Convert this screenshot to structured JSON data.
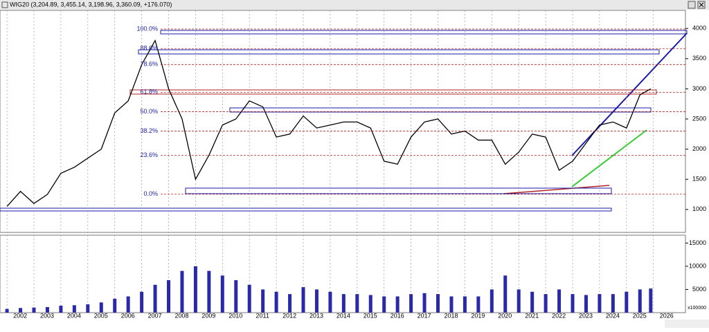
{
  "window_title": "WIG20 (3,204.89, 3,455.14, 3,198.96, 3,360.09, +176.070)",
  "chart_data": [
    {
      "type": "line",
      "color": "#000000",
      "x": [
        2002.0,
        2002.5,
        2003.0,
        2003.5,
        2004.0,
        2004.5,
        2005.0,
        2005.5,
        2006.0,
        2006.5,
        2007.0,
        2007.5,
        2008.0,
        2008.5,
        2009.0,
        2009.5,
        2010.0,
        2010.5,
        2011.0,
        2011.5,
        2012.0,
        2012.5,
        2013.0,
        2013.5,
        2014.0,
        2014.5,
        2015.0,
        2015.5,
        2016.0,
        2016.5,
        2017.0,
        2017.5,
        2018.0,
        2018.5,
        2019.0,
        2019.5,
        2020.0,
        2020.5,
        2021.0,
        2021.5,
        2022.0,
        2022.5,
        2023.0,
        2023.5,
        2024.0,
        2024.5,
        2025.0,
        2025.5,
        2025.9
      ],
      "values": [
        1050,
        1300,
        1100,
        1250,
        1600,
        1700,
        1850,
        2000,
        2600,
        2800,
        3400,
        3800,
        3000,
        2500,
        1500,
        1900,
        2400,
        2500,
        2800,
        2700,
        2200,
        2250,
        2550,
        2350,
        2400,
        2450,
        2450,
        2350,
        1800,
        1750,
        2200,
        2450,
        2500,
        2250,
        2300,
        2150,
        2150,
        1750,
        1950,
        2250,
        2200,
        1650,
        1800,
        2100,
        2400,
        2450,
        2350,
        2900,
        3000
      ],
      "xlim": [
        2001.74,
        2027.19
      ],
      "ylim": [
        620,
        4300
      ],
      "yticks": [
        1000,
        1500,
        2000,
        2500,
        3000,
        3500,
        4000
      ],
      "fib_levels": [
        {
          "label": "100.0%",
          "value": 3990
        },
        {
          "label": "88.6%",
          "value": 3667
        },
        {
          "label": "78.6%",
          "value": 3402
        },
        {
          "label": "61.8%",
          "value": 2943
        },
        {
          "label": "50.0%",
          "value": 2621
        },
        {
          "label": "38.2%",
          "value": 2299
        },
        {
          "label": "23.6%",
          "value": 1897
        },
        {
          "label": "0.0%",
          "value": 1253
        }
      ],
      "fib_color": "#b22222"
    },
    {
      "type": "bar",
      "color": "#2a2aa8",
      "x": [
        2002.0,
        2002.5,
        2003.0,
        2003.5,
        2004.0,
        2004.5,
        2005.0,
        2005.5,
        2006.0,
        2006.5,
        2007.0,
        2007.5,
        2008.0,
        2008.5,
        2009.0,
        2009.5,
        2010.0,
        2010.5,
        2011.0,
        2011.5,
        2012.0,
        2012.5,
        2013.0,
        2013.5,
        2014.0,
        2014.5,
        2015.0,
        2015.5,
        2016.0,
        2016.5,
        2017.0,
        2017.5,
        2018.0,
        2018.5,
        2019.0,
        2019.5,
        2020.0,
        2020.5,
        2021.0,
        2021.5,
        2022.0,
        2022.5,
        2023.0,
        2023.5,
        2024.0,
        2024.5,
        2025.0,
        2025.5,
        2025.9
      ],
      "values": [
        800,
        1000,
        1100,
        1200,
        1500,
        1600,
        1800,
        2200,
        3000,
        3500,
        4500,
        6000,
        7000,
        9000,
        10000,
        9000,
        8000,
        7000,
        6000,
        5000,
        4500,
        4000,
        5500,
        5000,
        4500,
        4000,
        4000,
        3800,
        3500,
        3500,
        4000,
        4200,
        4000,
        3500,
        3500,
        3500,
        5000,
        8000,
        5000,
        4500,
        4000,
        5000,
        4000,
        3800,
        4000,
        4000,
        4500,
        5000,
        5200
      ],
      "xlim": [
        2001.74,
        2027.19
      ],
      "ylim": [
        0,
        16700
      ],
      "yticks": [
        5000,
        10000,
        15000
      ],
      "y_unit_label": "x100000",
      "xticks": [
        2002,
        2003,
        2004,
        2005,
        2006,
        2007,
        2008,
        2009,
        2010,
        2011,
        2012,
        2013,
        2014,
        2015,
        2016,
        2017,
        2018,
        2019,
        2020,
        2021,
        2022,
        2023,
        2024,
        2025,
        2026
      ]
    }
  ]
}
